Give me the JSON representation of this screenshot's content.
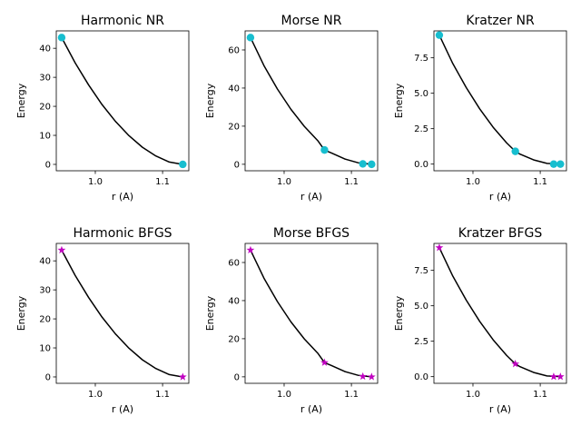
{
  "chart_data": [
    {
      "type": "line",
      "title": "Harmonic NR",
      "xlabel": "r (A)",
      "ylabel": "Energy",
      "xlim": [
        0.942,
        1.139
      ],
      "ylim": [
        -2.2,
        46.0
      ],
      "xticks": [
        1.0,
        1.1
      ],
      "xtick_labels": [
        "1.0",
        "1.1"
      ],
      "yticks": [
        0,
        10,
        20,
        30,
        40
      ],
      "ytick_labels": [
        "0",
        "10",
        "20",
        "30",
        "40"
      ],
      "curve": {
        "x": [
          0.95,
          0.97,
          0.99,
          1.01,
          1.03,
          1.05,
          1.07,
          1.09,
          1.11,
          1.13
        ],
        "y": [
          43.7,
          35.0,
          27.4,
          20.6,
          14.8,
          9.9,
          5.9,
          2.9,
          0.8,
          0.0
        ]
      },
      "markers": {
        "style": "circle",
        "color": "#17becf",
        "x": [
          0.95,
          1.13
        ],
        "y": [
          43.7,
          0.0
        ]
      }
    },
    {
      "type": "line",
      "title": "Morse NR",
      "xlabel": "r (A)",
      "ylabel": "Energy",
      "xlim": [
        0.942,
        1.139
      ],
      "ylim": [
        -3.4,
        70.0
      ],
      "xticks": [
        1.0,
        1.1
      ],
      "xtick_labels": [
        "1.0",
        "1.1"
      ],
      "yticks": [
        0,
        20,
        40,
        60
      ],
      "ytick_labels": [
        "0",
        "20",
        "40",
        "60"
      ],
      "curve": {
        "x": [
          0.95,
          0.97,
          0.99,
          1.01,
          1.03,
          1.05,
          1.06,
          1.07,
          1.09,
          1.11,
          1.13
        ],
        "y": [
          66.5,
          51.8,
          39.5,
          28.9,
          19.9,
          12.4,
          7.5,
          6.0,
          2.8,
          0.8,
          0.0
        ]
      },
      "markers": {
        "style": "circle",
        "color": "#17becf",
        "x": [
          0.95,
          1.06,
          1.117,
          1.13
        ],
        "y": [
          66.5,
          7.5,
          0.2,
          0.0
        ]
      }
    },
    {
      "type": "line",
      "title": "Kratzer NR",
      "xlabel": "r (A)",
      "ylabel": "Energy",
      "xlim": [
        0.942,
        1.139
      ],
      "ylim": [
        -0.47,
        9.4
      ],
      "xticks": [
        1.0,
        1.1
      ],
      "xtick_labels": [
        "1.0",
        "1.1"
      ],
      "yticks": [
        0,
        2.5,
        5.0,
        7.5
      ],
      "ytick_labels": [
        "0.0",
        "2.5",
        "5.0",
        "7.5"
      ],
      "curve": {
        "x": [
          0.95,
          0.97,
          0.99,
          1.01,
          1.03,
          1.05,
          1.063,
          1.07,
          1.09,
          1.11,
          1.13
        ],
        "y": [
          9.1,
          7.1,
          5.4,
          3.9,
          2.6,
          1.5,
          0.9,
          0.7,
          0.3,
          0.05,
          0.0
        ]
      },
      "markers": {
        "style": "circle",
        "color": "#17becf",
        "x": [
          0.95,
          1.063,
          1.12,
          1.13
        ],
        "y": [
          9.1,
          0.9,
          0.0,
          0.0
        ]
      }
    },
    {
      "type": "line",
      "title": "Harmonic BFGS",
      "xlabel": "r (A)",
      "ylabel": "Energy",
      "xlim": [
        0.942,
        1.139
      ],
      "ylim": [
        -2.2,
        46.0
      ],
      "xticks": [
        1.0,
        1.1
      ],
      "xtick_labels": [
        "1.0",
        "1.1"
      ],
      "yticks": [
        0,
        10,
        20,
        30,
        40
      ],
      "ytick_labels": [
        "0",
        "10",
        "20",
        "30",
        "40"
      ],
      "curve": {
        "x": [
          0.95,
          0.97,
          0.99,
          1.01,
          1.03,
          1.05,
          1.07,
          1.09,
          1.11,
          1.13
        ],
        "y": [
          43.7,
          35.0,
          27.4,
          20.6,
          14.8,
          9.9,
          5.9,
          2.9,
          0.8,
          0.0
        ]
      },
      "markers": {
        "style": "star",
        "color": "#c000c0",
        "x": [
          0.95,
          1.13
        ],
        "y": [
          43.7,
          0.0
        ]
      }
    },
    {
      "type": "line",
      "title": "Morse BFGS",
      "xlabel": "r (A)",
      "ylabel": "Energy",
      "xlim": [
        0.942,
        1.139
      ],
      "ylim": [
        -3.4,
        70.0
      ],
      "xticks": [
        1.0,
        1.1
      ],
      "xtick_labels": [
        "1.0",
        "1.1"
      ],
      "yticks": [
        0,
        20,
        40,
        60
      ],
      "ytick_labels": [
        "0",
        "20",
        "40",
        "60"
      ],
      "curve": {
        "x": [
          0.95,
          0.97,
          0.99,
          1.01,
          1.03,
          1.05,
          1.06,
          1.07,
          1.09,
          1.11,
          1.13
        ],
        "y": [
          66.5,
          51.8,
          39.5,
          28.9,
          19.9,
          12.4,
          7.5,
          6.0,
          2.8,
          0.8,
          0.0
        ]
      },
      "markers": {
        "style": "star",
        "color": "#c000c0",
        "x": [
          0.95,
          1.06,
          1.117,
          1.13
        ],
        "y": [
          66.5,
          7.5,
          0.2,
          0.0
        ]
      }
    },
    {
      "type": "line",
      "title": "Kratzer BFGS",
      "xlabel": "r (A)",
      "ylabel": "Energy",
      "xlim": [
        0.942,
        1.139
      ],
      "ylim": [
        -0.47,
        9.4
      ],
      "xticks": [
        1.0,
        1.1
      ],
      "xtick_labels": [
        "1.0",
        "1.1"
      ],
      "yticks": [
        0,
        2.5,
        5.0,
        7.5
      ],
      "ytick_labels": [
        "0.0",
        "2.5",
        "5.0",
        "7.5"
      ],
      "curve": {
        "x": [
          0.95,
          0.97,
          0.99,
          1.01,
          1.03,
          1.05,
          1.063,
          1.07,
          1.09,
          1.11,
          1.13
        ],
        "y": [
          9.1,
          7.1,
          5.4,
          3.9,
          2.6,
          1.5,
          0.9,
          0.7,
          0.3,
          0.05,
          0.0
        ]
      },
      "markers": {
        "style": "star",
        "color": "#c000c0",
        "x": [
          0.95,
          1.063,
          1.12,
          1.13
        ],
        "y": [
          9.1,
          0.9,
          0.0,
          0.0
        ]
      }
    }
  ]
}
